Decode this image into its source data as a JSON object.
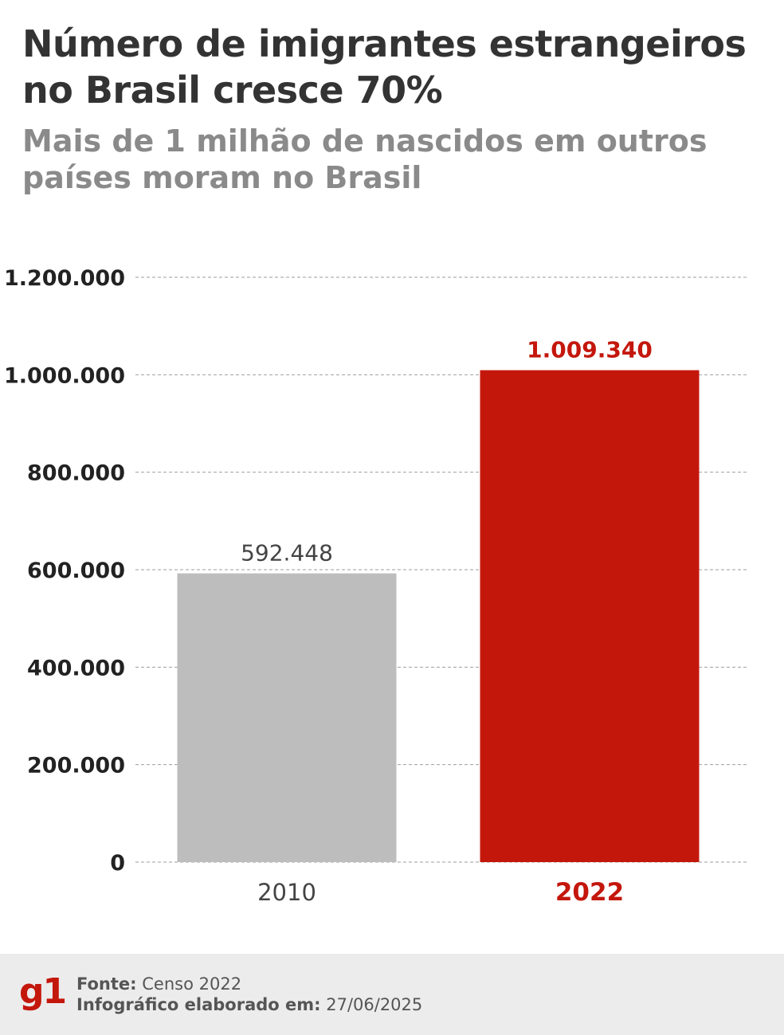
{
  "header": {
    "title": "Número de imigrantes estrangeiros no Brasil cresce 70%",
    "subtitle": "Mais de 1 milhão de nascidos em outros países moram no Brasil"
  },
  "chart_data": {
    "type": "bar",
    "categories": [
      "2010",
      "2022"
    ],
    "values": [
      592448,
      1009340
    ],
    "value_labels": [
      "592.448",
      "1.009.340"
    ],
    "yticks": [
      0,
      200000,
      400000,
      600000,
      800000,
      1000000,
      1200000
    ],
    "ytick_labels": [
      "0",
      "200.000",
      "400.000",
      "600.000",
      "800.000",
      "1.000.000",
      "1.200.000"
    ],
    "ylim": [
      0,
      1200000
    ],
    "grid": true,
    "colors": [
      "#bdbdbd",
      "#c4170c"
    ],
    "highlight_color": "#c4170c"
  },
  "footer": {
    "logo": "g1",
    "source_label": "Fonte:",
    "source_value": "Censo 2022",
    "date_label": "Infográfico elaborado em:",
    "date_value": "27/06/2025"
  }
}
